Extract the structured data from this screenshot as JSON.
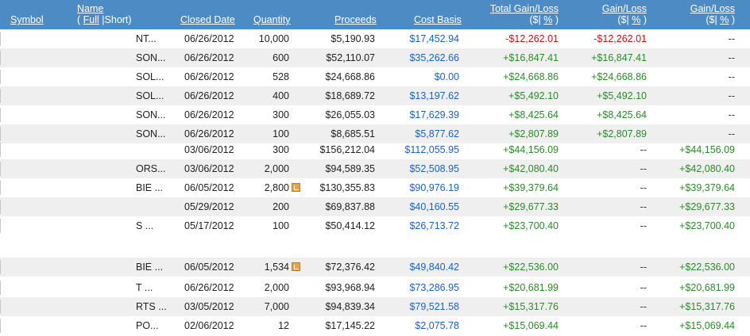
{
  "header": {
    "symbol": "Symbol",
    "name": "Name",
    "name_full": "Full",
    "name_short": "Short",
    "closed_date": "Closed Date",
    "quantity": "Quantity",
    "proceeds": "Proceeds",
    "cost_basis": "Cost Basis",
    "total_gain_loss": "Total Gain/Loss",
    "gain_loss_1": "Gain/Loss",
    "gain_loss_2": "Gain/Loss",
    "dollar": "($|",
    "percent": "%",
    "close_paren": ")"
  },
  "rows": [
    {
      "name": "NT...",
      "date": "06/26/2012",
      "qty": "10,000",
      "proceeds": "$5,190.93",
      "cost": "$17,452.94",
      "total": "-$12,262.01",
      "gl1": "-$12,262.01",
      "gl2": "--",
      "total_sign": "neg",
      "gl1_sign": "neg",
      "gl2_sign": "dash",
      "note": false
    },
    {
      "name": "SON...",
      "date": "06/26/2012",
      "qty": "600",
      "proceeds": "$52,110.07",
      "cost": "$35,262.66",
      "total": "+$16,847.41",
      "gl1": "+$16,847.41",
      "gl2": "--",
      "total_sign": "pos",
      "gl1_sign": "pos",
      "gl2_sign": "dash",
      "note": false
    },
    {
      "name": "SOL...",
      "date": "06/26/2012",
      "qty": "528",
      "proceeds": "$24,668.86",
      "cost": "$0.00",
      "total": "+$24,668.86",
      "gl1": "+$24,668.86",
      "gl2": "--",
      "total_sign": "pos",
      "gl1_sign": "pos",
      "gl2_sign": "dash",
      "note": false
    },
    {
      "name": "SOL...",
      "date": "06/26/2012",
      "qty": "400",
      "proceeds": "$18,689.72",
      "cost": "$13,197.62",
      "total": "+$5,492.10",
      "gl1": "+$5,492.10",
      "gl2": "--",
      "total_sign": "pos",
      "gl1_sign": "pos",
      "gl2_sign": "dash",
      "note": false
    },
    {
      "name": "SON...",
      "date": "06/26/2012",
      "qty": "300",
      "proceeds": "$26,055.03",
      "cost": "$17,629.39",
      "total": "+$8,425.64",
      "gl1": "+$8,425.64",
      "gl2": "--",
      "total_sign": "pos",
      "gl1_sign": "pos",
      "gl2_sign": "dash",
      "note": false
    },
    {
      "name": "SON...",
      "date": "06/26/2012",
      "qty": "100",
      "proceeds": "$8,685.51",
      "cost": "$5,877.62",
      "total": "+$2,807.89",
      "gl1": "+$2,807.89",
      "gl2": "--",
      "total_sign": "pos",
      "gl1_sign": "pos",
      "gl2_sign": "dash",
      "note": false
    },
    {
      "name": "",
      "date": "03/06/2012",
      "qty": "300",
      "proceeds": "$156,212.04",
      "cost": "$112,055.95",
      "total": "+$44,156.09",
      "gl1": "--",
      "gl2": "+$44,156.09",
      "total_sign": "pos",
      "gl1_sign": "dash",
      "gl2_sign": "pos",
      "note": false
    },
    {
      "name": "ORS...",
      "date": "03/06/2012",
      "qty": "2,000",
      "proceeds": "$94,589.35",
      "cost": "$52,508.95",
      "total": "+$42,080.40",
      "gl1": "--",
      "gl2": "+$42,080.40",
      "total_sign": "pos",
      "gl1_sign": "dash",
      "gl2_sign": "pos",
      "note": false
    },
    {
      "name": "BIE ...",
      "date": "06/05/2012",
      "qty": "2,800",
      "proceeds": "$130,355.83",
      "cost": "$90,976.19",
      "total": "+$39,379.64",
      "gl1": "--",
      "gl2": "+$39,379.64",
      "total_sign": "pos",
      "gl1_sign": "dash",
      "gl2_sign": "pos",
      "note": true
    },
    {
      "name": "",
      "date": "05/29/2012",
      "qty": "200",
      "proceeds": "$69,837.88",
      "cost": "$40,160.55",
      "total": "+$29,677.33",
      "gl1": "--",
      "gl2": "+$29,677.33",
      "total_sign": "pos",
      "gl1_sign": "dash",
      "gl2_sign": "pos",
      "note": false
    },
    {
      "name": "S ...",
      "date": "05/17/2012",
      "qty": "100",
      "proceeds": "$50,414.12",
      "cost": "$26,713.72",
      "total": "+$23,700.40",
      "gl1": "--",
      "gl2": "+$23,700.40",
      "total_sign": "pos",
      "gl1_sign": "dash",
      "gl2_sign": "pos",
      "note": false
    },
    {
      "name": "BIE ...",
      "date": "06/05/2012",
      "qty": "1,534",
      "proceeds": "$72,376.42",
      "cost": "$49,840.42",
      "total": "+$22,536.00",
      "gl1": "--",
      "gl2": "+$22,536.00",
      "total_sign": "pos",
      "gl1_sign": "dash",
      "gl2_sign": "pos",
      "note": true
    },
    {
      "name": "T ...",
      "date": "06/26/2012",
      "qty": "2,000",
      "proceeds": "$93,968.94",
      "cost": "$73,286.95",
      "total": "+$20,681.99",
      "gl1": "--",
      "gl2": "+$20,681.99",
      "total_sign": "pos",
      "gl1_sign": "dash",
      "gl2_sign": "pos",
      "note": false
    },
    {
      "name": "RTS ...",
      "date": "03/05/2012",
      "qty": "7,000",
      "proceeds": "$94,839.34",
      "cost": "$79,521.58",
      "total": "+$15,317.76",
      "gl1": "--",
      "gl2": "+$15,317.76",
      "total_sign": "pos",
      "gl1_sign": "dash",
      "gl2_sign": "pos",
      "note": false
    },
    {
      "name": "PO...",
      "date": "02/06/2012",
      "qty": "12",
      "proceeds": "$17,145.22",
      "cost": "$2,075.78",
      "total": "+$15,069.44",
      "gl1": "--",
      "gl2": "+$15,069.44",
      "total_sign": "pos",
      "gl1_sign": "dash",
      "gl2_sign": "pos",
      "note": false
    }
  ],
  "colors": {
    "header_bg": "#4d8bc5",
    "positive": "#2c8a2c",
    "negative": "#cc1111",
    "cost_basis": "#1a62c6",
    "alt_row": "#efefef"
  }
}
